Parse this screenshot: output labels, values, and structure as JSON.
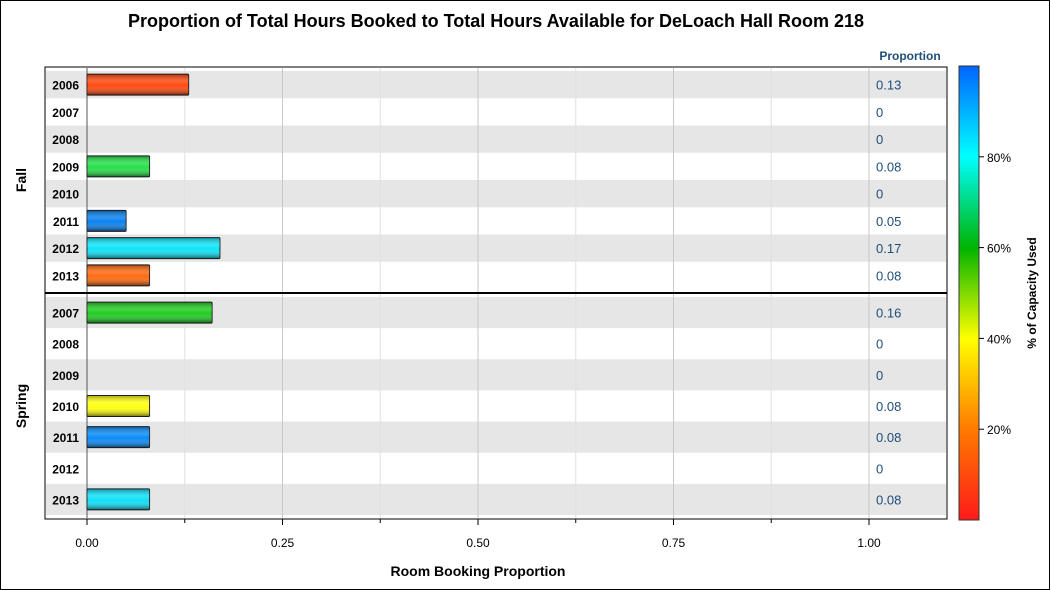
{
  "chart_data": {
    "type": "bar",
    "orientation": "horizontal",
    "title": "Proportion of Total Hours Booked to Total Hours Available for DeLoach Hall Room 218",
    "xlabel": "Room Booking Proportion",
    "xlim": [
      0,
      1.1
    ],
    "xticks": [
      "0.00",
      "0.25",
      "0.50",
      "0.75",
      "1.00"
    ],
    "xtick_values": [
      0,
      0.25,
      0.5,
      0.75,
      1.0
    ],
    "value_column_header": "Proportion",
    "colorbar": {
      "label": "% of Capacity Used",
      "ticks": [
        "20%",
        "40%",
        "60%",
        "80%"
      ],
      "tick_values": [
        20,
        40,
        60,
        80
      ],
      "range": [
        0,
        100
      ],
      "stops": [
        "#ff1a1a",
        "#ff7a00",
        "#ffff00",
        "#00b400",
        "#00ffff",
        "#0064ff"
      ]
    },
    "panels": [
      {
        "name": "Fall",
        "rows": [
          {
            "year": "2006",
            "value": 0.13,
            "label": "0.13",
            "color": "#ff4a10"
          },
          {
            "year": "2007",
            "value": 0,
            "label": "0",
            "color": "#ffffff"
          },
          {
            "year": "2008",
            "value": 0,
            "label": "0",
            "color": "#ffffff"
          },
          {
            "year": "2009",
            "value": 0.08,
            "label": "0.08",
            "color": "#28e04a"
          },
          {
            "year": "2010",
            "value": 0,
            "label": "0",
            "color": "#ffffff"
          },
          {
            "year": "2011",
            "value": 0.05,
            "label": "0.05",
            "color": "#0a82f0"
          },
          {
            "year": "2012",
            "value": 0.17,
            "label": "0.17",
            "color": "#10e4f8"
          },
          {
            "year": "2013",
            "value": 0.08,
            "label": "0.08",
            "color": "#ff6a10"
          }
        ]
      },
      {
        "name": "Spring",
        "rows": [
          {
            "year": "2007",
            "value": 0.16,
            "label": "0.16",
            "color": "#22cc22"
          },
          {
            "year": "2008",
            "value": 0,
            "label": "0",
            "color": "#ffffff"
          },
          {
            "year": "2009",
            "value": 0,
            "label": "0",
            "color": "#ffffff"
          },
          {
            "year": "2010",
            "value": 0.08,
            "label": "0.08",
            "color": "#ffff10"
          },
          {
            "year": "2011",
            "value": 0.08,
            "label": "0.08",
            "color": "#0a8cf8"
          },
          {
            "year": "2012",
            "value": 0,
            "label": "0",
            "color": "#ffffff"
          },
          {
            "year": "2013",
            "value": 0.08,
            "label": "0.08",
            "color": "#10e0f8"
          }
        ]
      }
    ]
  }
}
